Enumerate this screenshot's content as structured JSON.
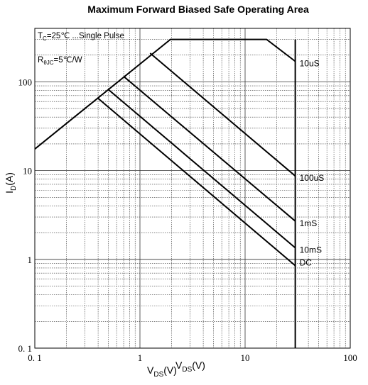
{
  "chart_data": {
    "type": "line",
    "title": "Maximum Forward Biased Safe Operating Area",
    "xlabel_main": "V",
    "xlabel_sub": "DS",
    "xlabel_unit": "(V)",
    "ylabel_main": "I",
    "ylabel_sub": "D",
    "ylabel_unit": "(A)",
    "x_scale": "log",
    "y_scale": "log",
    "xlim": [
      0.1,
      100
    ],
    "ylim": [
      0.1,
      400
    ],
    "grid": true,
    "x_ticks": [
      {
        "value": 0.1,
        "label": "0. 1"
      },
      {
        "value": 1,
        "label": "1"
      },
      {
        "value": 10,
        "label": "10"
      },
      {
        "value": 100,
        "label": "100"
      }
    ],
    "y_ticks": [
      {
        "value": 0.1,
        "label": "0. 1"
      },
      {
        "value": 1,
        "label": "1"
      },
      {
        "value": 10,
        "label": "10"
      },
      {
        "value": 100,
        "label": "100"
      }
    ],
    "annotations": {
      "tc": "T",
      "tc_sub": "C",
      "tc_rest": "=25℃ ...Single Pulse",
      "rth": "R",
      "rth_sub": "θJC",
      "rth_rest": "=5℃/W"
    },
    "series": [
      {
        "name": "10uS",
        "points": [
          [
            0.1,
            17.5
          ],
          [
            1.95,
            300
          ],
          [
            16,
            300
          ],
          [
            30,
            170
          ]
        ]
      },
      {
        "name": "100uS",
        "points": [
          [
            1.25,
            210
          ],
          [
            30,
            8.7
          ]
        ]
      },
      {
        "name": "1mS",
        "points": [
          [
            0.7,
            115
          ],
          [
            30,
            2.7
          ]
        ]
      },
      {
        "name": "10mS",
        "points": [
          [
            0.5,
            82
          ],
          [
            30,
            1.35
          ]
        ]
      },
      {
        "name": "DC",
        "points": [
          [
            0.4,
            65
          ],
          [
            30,
            0.85
          ]
        ]
      }
    ],
    "vertical_limit": {
      "x": 30,
      "y_range": [
        0.1,
        300
      ]
    }
  }
}
